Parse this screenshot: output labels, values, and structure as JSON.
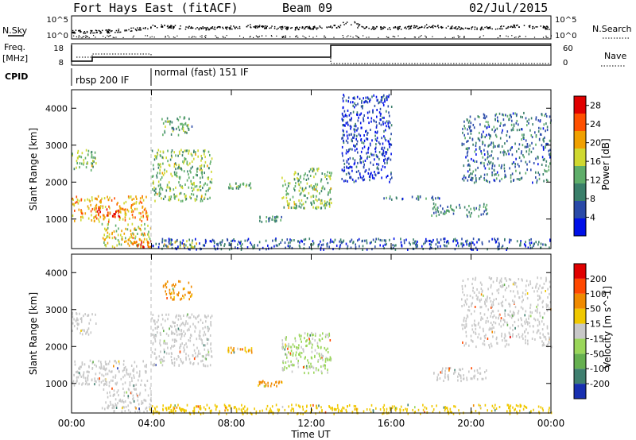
{
  "header": {
    "station": "Fort Hays East (fitACF)",
    "beam": "Beam 09",
    "date": "02/Jul/2015"
  },
  "top_panels": {
    "nsky": {
      "label": "N.Sky",
      "ticks": [
        "10^5",
        "10^0"
      ]
    },
    "nsearch": {
      "label": "N.Search",
      "ticks": [
        "10^5",
        "10^0"
      ]
    },
    "freq": {
      "label_line1": "Freq.",
      "label_line2": "[MHz]",
      "ticks": [
        "18",
        "8"
      ]
    },
    "nave": {
      "label": "Nave",
      "ticks": [
        "60",
        "0"
      ]
    },
    "cpid": {
      "label": "CPID",
      "segments": [
        {
          "label": "rbsp 200 IF",
          "start_hour": 0.0,
          "end_hour": 4.0
        },
        {
          "label": "normal (fast) 151 IF",
          "start_hour": 4.0,
          "end_hour": 24.0
        }
      ]
    }
  },
  "chart_data": [
    {
      "type": "heatmap",
      "panel": "power",
      "ylabel": "Slant Range [km]",
      "xlim_hours": [
        0,
        24
      ],
      "ylim_km": [
        200,
        4500
      ],
      "yticks": [
        1000,
        2000,
        3000,
        4000
      ],
      "colorbar": {
        "label": "Power [dB]",
        "ticks": [
          4,
          8,
          12,
          16,
          20,
          24,
          28
        ],
        "range": [
          0,
          30
        ],
        "colors": [
          "#0010e8",
          "#2a4aa8",
          "#3a7f6a",
          "#5fae6a",
          "#cfd830",
          "#f0a000",
          "#ff5000",
          "#e00000"
        ]
      },
      "echo_regions": [
        {
          "t0": 0.0,
          "t1": 1.2,
          "r0": 2350,
          "r1": 2950,
          "level": 14
        },
        {
          "t0": 0.0,
          "t1": 3.8,
          "r0": 950,
          "r1": 1650,
          "level": 20
        },
        {
          "t0": 1.0,
          "t1": 2.5,
          "r0": 1050,
          "r1": 1300,
          "level": 26
        },
        {
          "t0": 1.5,
          "t1": 4.0,
          "r0": 250,
          "r1": 900,
          "level": 18
        },
        {
          "t0": 3.0,
          "t1": 4.0,
          "r0": 250,
          "r1": 500,
          "level": 24
        },
        {
          "t0": 4.0,
          "t1": 7.0,
          "r0": 1500,
          "r1": 2900,
          "level": 14
        },
        {
          "t0": 4.5,
          "t1": 6.0,
          "r0": 3300,
          "r1": 3800,
          "level": 12
        },
        {
          "t0": 4.5,
          "t1": 6.5,
          "r0": 250,
          "r1": 450,
          "level": 16
        },
        {
          "t0": 7.8,
          "t1": 9.0,
          "r0": 1850,
          "r1": 2000,
          "level": 12
        },
        {
          "t0": 9.3,
          "t1": 10.5,
          "r0": 950,
          "r1": 1100,
          "level": 10
        },
        {
          "t0": 10.5,
          "t1": 13.0,
          "r0": 1300,
          "r1": 2400,
          "level": 14
        },
        {
          "t0": 4.0,
          "t1": 24.0,
          "r0": 200,
          "r1": 500,
          "level": 6
        },
        {
          "t0": 13.5,
          "t1": 16.0,
          "r0": 2000,
          "r1": 4400,
          "level": 4
        },
        {
          "t0": 15.5,
          "t1": 18.5,
          "r0": 1550,
          "r1": 1650,
          "level": 8
        },
        {
          "t0": 18.0,
          "t1": 20.8,
          "r0": 1100,
          "r1": 1450,
          "level": 10
        },
        {
          "t0": 19.5,
          "t1": 24.0,
          "r0": 2000,
          "r1": 3900,
          "level": 8
        }
      ]
    },
    {
      "type": "heatmap",
      "panel": "velocity",
      "ylabel": "Slant Range [km]",
      "xlabel": "Time UT",
      "xlim_hours": [
        0,
        24
      ],
      "ylim_km": [
        200,
        4500
      ],
      "yticks": [
        1000,
        2000,
        3000,
        4000
      ],
      "xticks": [
        "00:00",
        "04:00",
        "08:00",
        "12:00",
        "16:00",
        "20:00",
        "00:00"
      ],
      "colorbar": {
        "label": "Velocity [m s^-1]",
        "ticks": [
          "200",
          "100",
          "50",
          "15",
          "-15",
          "-50",
          "-100",
          "-200"
        ],
        "colors": [
          "#1830b0",
          "#3f7f6f",
          "#66b050",
          "#9ad65a",
          "#c8c8c8",
          "#f0c800",
          "#f08a00",
          "#ff4800",
          "#e00000"
        ]
      },
      "echo_regions": [
        {
          "t0": 0.0,
          "t1": 1.2,
          "r0": 2350,
          "r1": 2950,
          "vel": 0
        },
        {
          "t0": 0.0,
          "t1": 3.8,
          "r0": 950,
          "r1": 1650,
          "vel": 0
        },
        {
          "t0": 1.5,
          "t1": 4.0,
          "r0": 250,
          "r1": 900,
          "vel": 0
        },
        {
          "t0": 4.0,
          "t1": 7.0,
          "r0": 1500,
          "r1": 2900,
          "vel": 0
        },
        {
          "t0": 4.5,
          "t1": 6.0,
          "r0": 3300,
          "r1": 3800,
          "vel": -60
        },
        {
          "t0": 4.5,
          "t1": 6.5,
          "r0": 250,
          "r1": 450,
          "vel": -40
        },
        {
          "t0": 7.8,
          "t1": 9.0,
          "r0": 1850,
          "r1": 2000,
          "vel": -50
        },
        {
          "t0": 9.3,
          "t1": 10.5,
          "r0": 950,
          "r1": 1100,
          "vel": -60
        },
        {
          "t0": 10.5,
          "t1": 13.0,
          "r0": 1300,
          "r1": 2400,
          "vel": 20
        },
        {
          "t0": 4.0,
          "t1": 24.0,
          "r0": 200,
          "r1": 450,
          "vel": -30
        },
        {
          "t0": 18.0,
          "t1": 20.8,
          "r0": 1100,
          "r1": 1450,
          "vel": 0
        },
        {
          "t0": 19.5,
          "t1": 24.0,
          "r0": 2000,
          "r1": 3900,
          "vel": 0
        }
      ]
    }
  ]
}
